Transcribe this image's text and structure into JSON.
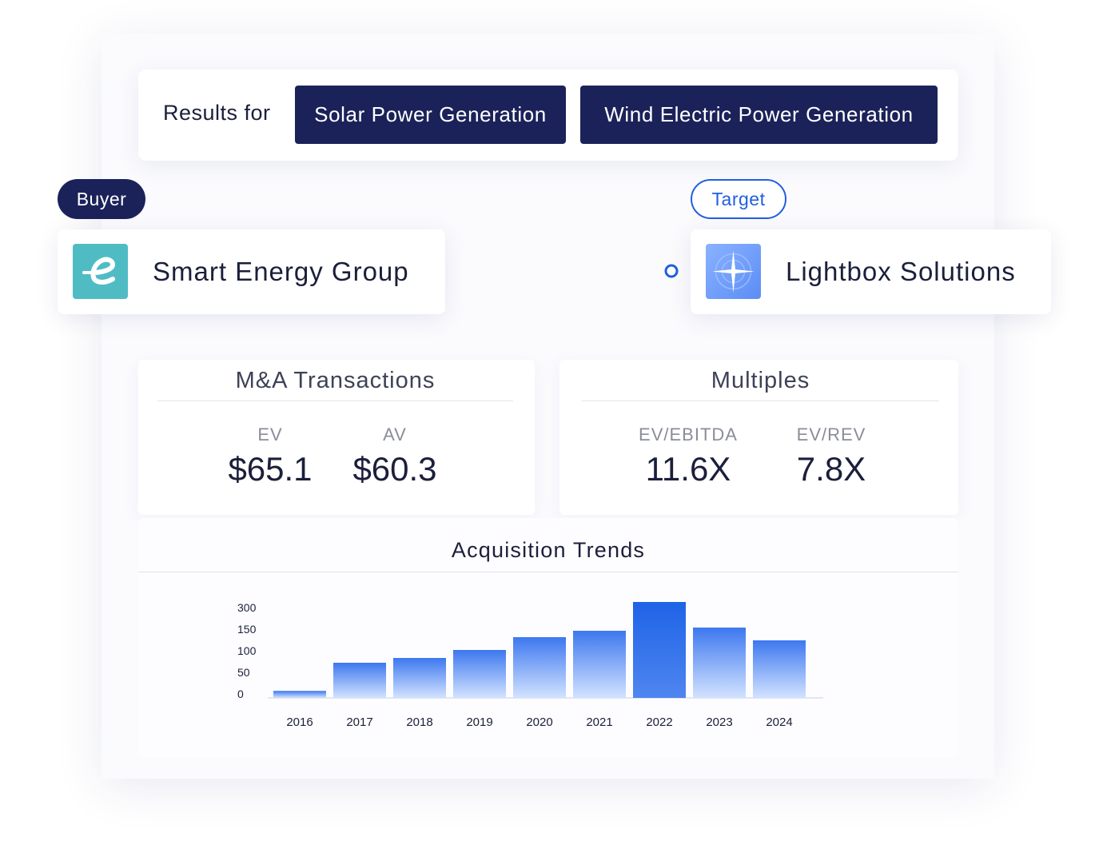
{
  "results": {
    "label": "Results for",
    "filters": [
      "Solar Power Generation",
      "Wind Electric Power Generation"
    ]
  },
  "buyer": {
    "role": "Buyer",
    "name": "Smart Energy Group",
    "logo_icon": "e-letter-icon",
    "logo_color": "#4fbcc4"
  },
  "target": {
    "role": "Target",
    "name": "Lightbox Solutions",
    "logo_icon": "sparkle-star-icon",
    "logo_color": "#6f9cff"
  },
  "ma_transactions": {
    "title": "M&A Transactions",
    "ev_label": "EV",
    "ev_value": "$65.1",
    "av_label": "AV",
    "av_value": "$60.3"
  },
  "multiples": {
    "title": "Multiples",
    "ebitda_label": "EV/EBITDA",
    "ebitda_value": "11.6X",
    "rev_label": "EV/REV",
    "rev_value": "7.8X"
  },
  "colors": {
    "navy": "#1b2259",
    "accent_blue": "#1f5fe0",
    "bar_top": "#3d78ef",
    "bar_bottom": "#d3e3ff",
    "bar_highlight": "#1e63e6"
  },
  "chart_data": {
    "type": "bar",
    "title": "Acquisition Trends",
    "categories": [
      "2016",
      "2017",
      "2018",
      "2019",
      "2020",
      "2021",
      "2022",
      "2023",
      "2024"
    ],
    "values": [
      22,
      110,
      125,
      150,
      190,
      210,
      300,
      220,
      180
    ],
    "y_ticks": [
      "300",
      "150",
      "100",
      "50",
      "0"
    ],
    "highlight_category": "2022",
    "grid": false,
    "legend": "none"
  }
}
